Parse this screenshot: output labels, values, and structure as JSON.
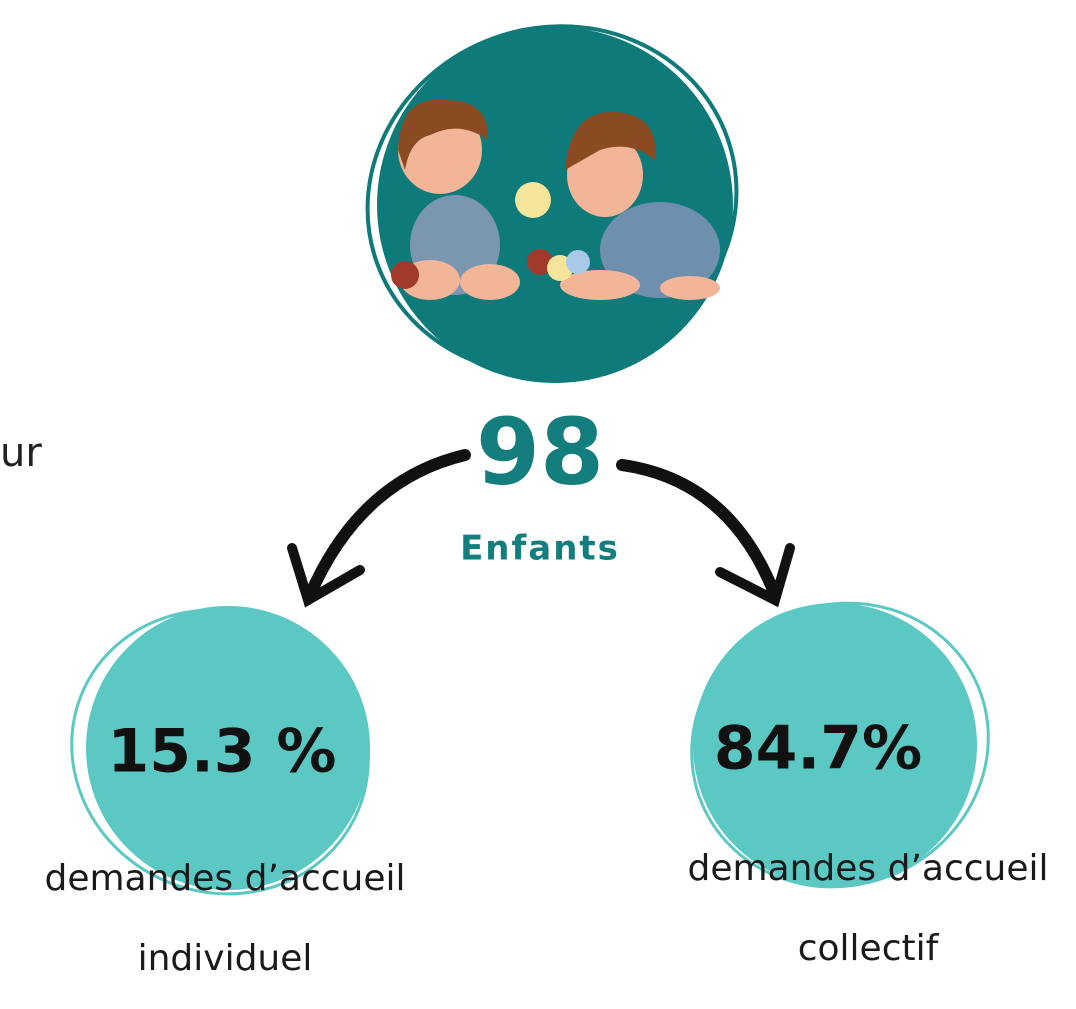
{
  "side_text": "ur",
  "center": {
    "number": "98",
    "label": "Enfants"
  },
  "items": [
    {
      "value": "15.3 %",
      "caption_lines": [
        "demandes d’accueil",
        "individuel"
      ]
    },
    {
      "value": "84.7%",
      "caption_lines": [
        "demandes d’accueil",
        "collectif"
      ]
    }
  ]
}
